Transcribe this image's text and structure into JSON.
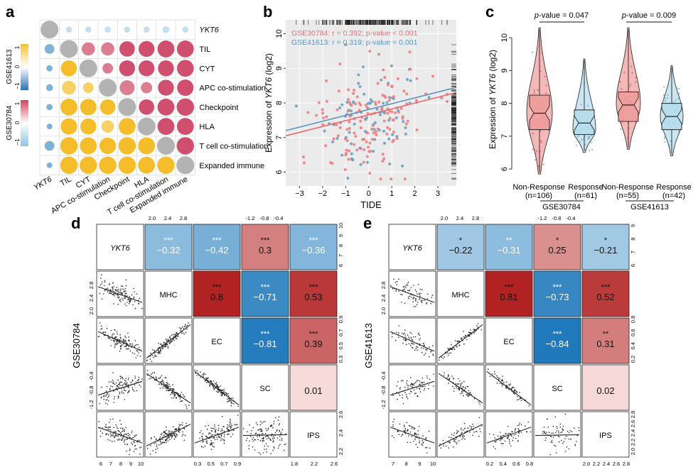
{
  "panels": {
    "a": {
      "label": "a",
      "genes": [
        "YKT6",
        "TIL",
        "CYT",
        "APC co-stimulation",
        "Checkpoint",
        "HLA",
        "T cell co-stimulation",
        "Expanded immune"
      ],
      "colorbars": [
        {
          "name": "GSE41613",
          "ticks": [
            "1",
            "0",
            "−1"
          ],
          "high_color": "#f6c12c",
          "low_color": "#2a73b6"
        },
        {
          "name": "GSE30784",
          "ticks": [
            "1",
            "0",
            "−1"
          ],
          "high_color": "#d1455e",
          "low_color": "#8fc3e8"
        }
      ],
      "upper_sign": [
        -1,
        -1,
        -1,
        -1,
        -1,
        -1,
        -1
      ]
    },
    "b": {
      "label": "b",
      "xlabel": "TIDE",
      "ylabel_prefix": "Expression of ",
      "ylabel_gene": "YKT6",
      "ylabel_suffix": " (log2)",
      "legend": [
        {
          "text": "GSE30784: r = 0.392; p-value < 0.001",
          "color": "#e56c72"
        },
        {
          "text": "GSE41613: r = 0.319; p-value = 0.001",
          "color": "#5b93bd"
        }
      ]
    },
    "c": {
      "label": "c",
      "ylabel_prefix": "Expression of ",
      "ylabel_gene": "YKT6",
      "ylabel_suffix": " (log2)",
      "pvalues": [
        "p-value = 0.047",
        "p-value = 0.009"
      ],
      "groups": [
        {
          "name": "Non-Response",
          "n": "(n=106)",
          "color": "#ef9a9a"
        },
        {
          "name": "Response",
          "n": "(n=61)",
          "color": "#b5dcec"
        },
        {
          "name": "Non-Response",
          "n": "(n=55)",
          "color": "#ef9a9a"
        },
        {
          "name": "Response",
          "n": "(n=42)",
          "color": "#b5dcec"
        }
      ],
      "datasets": [
        "GSE30784",
        "GSE41613"
      ]
    },
    "d": {
      "label": "d",
      "dataset": "GSE30784",
      "variables": [
        "YKT6",
        "MHC",
        "EC",
        "SC",
        "IPS"
      ],
      "correlations": [
        {
          "row": 0,
          "col": 1,
          "value": "−0.32",
          "stars": "***"
        },
        {
          "row": 0,
          "col": 2,
          "value": "−0.42",
          "stars": "***"
        },
        {
          "row": 0,
          "col": 3,
          "value": "0.3",
          "stars": "***"
        },
        {
          "row": 0,
          "col": 4,
          "value": "−0.36",
          "stars": "***"
        },
        {
          "row": 1,
          "col": 2,
          "value": "0.8",
          "stars": "***"
        },
        {
          "row": 1,
          "col": 3,
          "value": "−0.71",
          "stars": "***"
        },
        {
          "row": 1,
          "col": 4,
          "value": "0.53",
          "stars": "***"
        },
        {
          "row": 2,
          "col": 3,
          "value": "−0.81",
          "stars": "***"
        },
        {
          "row": 2,
          "col": 4,
          "value": "0.39",
          "stars": "***"
        },
        {
          "row": 3,
          "col": 4,
          "value": "0.01",
          "stars": ""
        }
      ],
      "top_axis": [
        [
          "2.0",
          "2.4",
          "2.8"
        ],
        [
          "-1.2",
          "-0.8",
          "-0.4"
        ]
      ],
      "right_axis": [
        [
          "6",
          "7",
          "8",
          "9",
          "10"
        ],
        [
          "0.3",
          "0.5",
          "0.7",
          "0.9"
        ],
        [
          "2.2",
          "2.4",
          "2.6"
        ]
      ],
      "left_axis": [
        [
          "2.0",
          "2.4",
          "2.8"
        ],
        [
          "-1.2",
          "-0.8",
          "-0.4"
        ]
      ],
      "bottom_axis": [
        [
          "6",
          "7",
          "8",
          "9",
          "10"
        ],
        [
          "0.3",
          "0.5",
          "0.7",
          "0.9"
        ],
        [
          "1.8",
          "2.2",
          "2.6"
        ]
      ]
    },
    "e": {
      "label": "e",
      "dataset": "GSE41613",
      "variables": [
        "YKT6",
        "MHC",
        "EC",
        "SC",
        "IPS"
      ],
      "correlations": [
        {
          "row": 0,
          "col": 1,
          "value": "−0.22",
          "stars": "*"
        },
        {
          "row": 0,
          "col": 2,
          "value": "−0.31",
          "stars": "**"
        },
        {
          "row": 0,
          "col": 3,
          "value": "0.25",
          "stars": "*"
        },
        {
          "row": 0,
          "col": 4,
          "value": "−0.21",
          "stars": "*"
        },
        {
          "row": 1,
          "col": 2,
          "value": "0.81",
          "stars": "***"
        },
        {
          "row": 1,
          "col": 3,
          "value": "−0.73",
          "stars": "***"
        },
        {
          "row": 1,
          "col": 4,
          "value": "0.52",
          "stars": "***"
        },
        {
          "row": 2,
          "col": 3,
          "value": "−0.84",
          "stars": "***"
        },
        {
          "row": 2,
          "col": 4,
          "value": "0.31",
          "stars": "**"
        },
        {
          "row": 3,
          "col": 4,
          "value": "0.02",
          "stars": ""
        }
      ],
      "top_axis": [
        [
          "2.0",
          "2.4",
          "2.8"
        ],
        [
          "-1.2",
          "-0.8",
          "-0.4"
        ]
      ],
      "right_axis": [
        [
          "6",
          "7",
          "8",
          "9"
        ],
        [
          "0.2",
          "0.4",
          "0.6",
          "0.8"
        ],
        [
          "2.0",
          "2.2",
          "2.4",
          "2.6",
          "2.8"
        ]
      ],
      "left_axis": [
        [
          "2.0",
          "2.4",
          "2.8"
        ],
        [
          "-1.2",
          "-0.8",
          "-0.4"
        ]
      ],
      "bottom_axis": [
        [
          "7",
          "8",
          "9",
          "10"
        ],
        [
          "0.2",
          "0.4",
          "0.6",
          "0.8"
        ],
        [
          "2.0",
          "2.2",
          "2.4",
          "2.6",
          "2.8"
        ]
      ]
    }
  },
  "chart_data": [
    {
      "type": "scatter",
      "panel": "b",
      "xlabel": "TIDE",
      "ylabel": "Expression of YKT6 (log2)",
      "xlim": [
        -3.6,
        3.8
      ],
      "ylim": [
        5.6,
        10.4
      ],
      "xticks": [
        -3,
        -2,
        -1,
        0,
        1,
        2,
        3
      ],
      "yticks": [
        6,
        7,
        8,
        9,
        10
      ],
      "grid": true,
      "legend_position": "top-left",
      "series": [
        {
          "name": "GSE30784",
          "color": "#e56c72",
          "r": 0.392,
          "fit_line": [
            [
              -3.6,
              7.05
            ],
            [
              3.8,
              8.3
            ]
          ]
        },
        {
          "name": "GSE41613",
          "color": "#5b93bd",
          "r": 0.319,
          "fit_line": [
            [
              -3.6,
              7.2
            ],
            [
              3.8,
              8.45
            ]
          ]
        }
      ]
    },
    {
      "type": "violin",
      "panel": "c",
      "ylabel": "Expression of YKT6 (log2)",
      "ylim": [
        5.7,
        10.5
      ],
      "yticks": [
        6,
        7,
        8,
        9,
        10
      ],
      "categories": [
        "Non-Response (n=106)",
        "Response (n=61)",
        "Non-Response (n=55)",
        "Response (n=42)"
      ],
      "medians": [
        7.7,
        7.4,
        7.95,
        7.6
      ],
      "q1": [
        7.2,
        7.05,
        7.45,
        7.2
      ],
      "q3": [
        8.25,
        7.8,
        8.35,
        8.0
      ],
      "pvalues": [
        0.047,
        0.009
      ]
    }
  ]
}
